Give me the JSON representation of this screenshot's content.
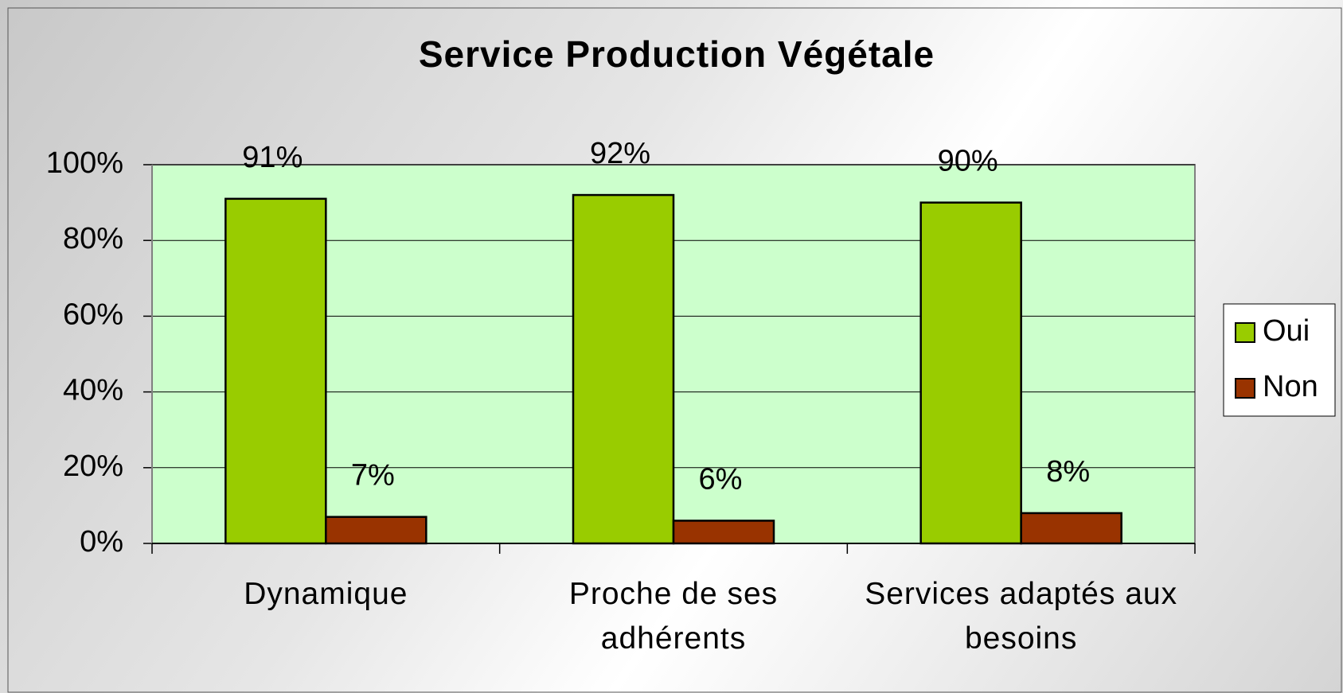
{
  "chart_data": {
    "type": "bar",
    "title": "Service Production Végétale",
    "categories": [
      "Dynamique",
      "Proche de ses adhérents",
      "Services adaptés aux besoins"
    ],
    "series": [
      {
        "name": "Oui",
        "color": "#99cc00",
        "values": [
          91,
          92,
          90
        ],
        "value_labels": [
          "91%",
          "92%",
          "90%"
        ]
      },
      {
        "name": "Non",
        "color": "#993300",
        "values": [
          7,
          6,
          8
        ],
        "value_labels": [
          "7%",
          "6%",
          "8%"
        ]
      }
    ],
    "ylim": [
      0,
      100
    ],
    "yticks": [
      {
        "value": 0,
        "label": "0%"
      },
      {
        "value": 20,
        "label": "20%"
      },
      {
        "value": 40,
        "label": "40%"
      },
      {
        "value": 60,
        "label": "60%"
      },
      {
        "value": 80,
        "label": "80%"
      },
      {
        "value": 100,
        "label": "100%"
      }
    ],
    "grid": true,
    "legend": "right"
  }
}
